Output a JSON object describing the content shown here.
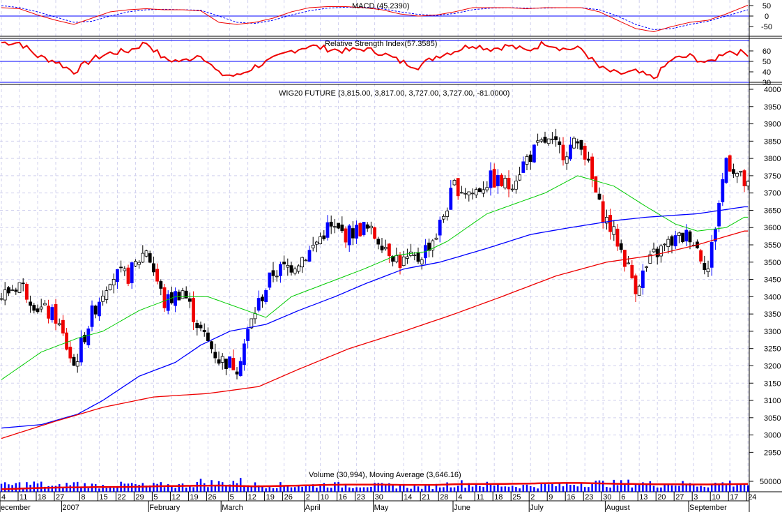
{
  "chart_data": {
    "type": "candlestick",
    "title": "WIG20 FUTURE (3,815.00, 3,817.00, 3,727.00, 3,727.00, -81.0000)",
    "panels": {
      "macd": {
        "title": "MACD (45.2390)",
        "ticks": [
          "50",
          "0",
          "-50"
        ],
        "tick_values": [
          50,
          0,
          -50
        ],
        "macd": [
          40,
          35,
          5,
          -20,
          -40,
          -10,
          20,
          30,
          35,
          30,
          30,
          25,
          -30,
          -40,
          -30,
          -10,
          20,
          40,
          45,
          45,
          40,
          30,
          10,
          0,
          5,
          20,
          40,
          40,
          40,
          35,
          40,
          40,
          40,
          20,
          -20,
          -60,
          -75,
          -50,
          -30,
          -20,
          10,
          45
        ],
        "signal": [
          50,
          40,
          20,
          -5,
          -30,
          -25,
          0,
          20,
          30,
          32,
          30,
          28,
          0,
          -30,
          -35,
          -20,
          5,
          25,
          38,
          42,
          42,
          35,
          20,
          8,
          3,
          12,
          30,
          38,
          40,
          38,
          38,
          40,
          40,
          30,
          0,
          -40,
          -65,
          -60,
          -40,
          -25,
          0,
          25
        ]
      },
      "rsi": {
        "title": "Relative Strength Index(57.3585)",
        "ticks": [
          "60",
          "50",
          "40",
          "30"
        ],
        "tick_values": [
          60,
          50,
          40,
          30
        ],
        "levels": [
          70,
          50,
          30
        ],
        "values": [
          68,
          68,
          55,
          50,
          40,
          52,
          58,
          60,
          68,
          52,
          50,
          57,
          38,
          36,
          45,
          52,
          60,
          65,
          62,
          60,
          62,
          58,
          50,
          45,
          55,
          60,
          66,
          62,
          65,
          60,
          68,
          62,
          62,
          44,
          38,
          40,
          34,
          52,
          55,
          48,
          60,
          58
        ]
      },
      "price": {
        "ticks": [
          "4000",
          "3950",
          "3900",
          "3850",
          "3800",
          "3750",
          "3700",
          "3650",
          "3600",
          "3550",
          "3500",
          "3450",
          "3400",
          "3350",
          "3300",
          "3250",
          "3200",
          "3150",
          "3100",
          "3050",
          "3000",
          "2950"
        ],
        "ylim": [
          2950,
          4000
        ],
        "weekly_close": [
          3400,
          3440,
          3370,
          3340,
          3200,
          3350,
          3460,
          3460,
          3540,
          3380,
          3420,
          3300,
          3220,
          3200,
          3360,
          3470,
          3490,
          3530,
          3600,
          3580,
          3600,
          3560,
          3500,
          3510,
          3580,
          3720,
          3700,
          3740,
          3720,
          3800,
          3850,
          3820,
          3850,
          3660,
          3560,
          3430,
          3520,
          3560,
          3580,
          3480,
          3800,
          3727
        ],
        "ma_short": [
          [
            0,
            3160
          ],
          [
            11,
            3240
          ],
          [
            21,
            3280
          ],
          [
            28,
            3300
          ],
          [
            38,
            3360
          ],
          [
            48,
            3400
          ],
          [
            57,
            3400
          ],
          [
            73,
            3340
          ],
          [
            80,
            3400
          ],
          [
            90,
            3440
          ],
          [
            100,
            3480
          ],
          [
            109,
            3520
          ],
          [
            117,
            3530
          ],
          [
            123,
            3560
          ],
          [
            134,
            3640
          ],
          [
            150,
            3700
          ],
          [
            159,
            3750
          ],
          [
            169,
            3720
          ],
          [
            178,
            3660
          ],
          [
            186,
            3610
          ],
          [
            192,
            3590
          ],
          [
            200,
            3600
          ],
          [
            205,
            3630
          ]
        ],
        "ma_mid": [
          [
            0,
            3020
          ],
          [
            11,
            3030
          ],
          [
            21,
            3060
          ],
          [
            28,
            3100
          ],
          [
            38,
            3170
          ],
          [
            48,
            3210
          ],
          [
            55,
            3260
          ],
          [
            63,
            3300
          ],
          [
            73,
            3320
          ],
          [
            82,
            3360
          ],
          [
            92,
            3400
          ],
          [
            101,
            3440
          ],
          [
            111,
            3480
          ],
          [
            121,
            3500
          ],
          [
            134,
            3540
          ],
          [
            146,
            3580
          ],
          [
            157,
            3600
          ],
          [
            169,
            3620
          ],
          [
            178,
            3630
          ],
          [
            192,
            3640
          ],
          [
            205,
            3660
          ]
        ],
        "ma_long": [
          [
            0,
            2990
          ],
          [
            15,
            3040
          ],
          [
            28,
            3080
          ],
          [
            42,
            3110
          ],
          [
            57,
            3120
          ],
          [
            71,
            3140
          ],
          [
            82,
            3190
          ],
          [
            96,
            3250
          ],
          [
            111,
            3300
          ],
          [
            125,
            3350
          ],
          [
            138,
            3400
          ],
          [
            153,
            3460
          ],
          [
            167,
            3500
          ],
          [
            180,
            3520
          ],
          [
            192,
            3550
          ],
          [
            205,
            3590
          ]
        ]
      },
      "volume": {
        "title": "Volume (30,994), Moving Average (3,646.16)",
        "ticks": [
          "50000"
        ],
        "weekly_avg": [
          30,
          35,
          38,
          22,
          40,
          30,
          28,
          35,
          28,
          32,
          30,
          45,
          40,
          50,
          33,
          32,
          30,
          30,
          35,
          30,
          32,
          28,
          30,
          22,
          28,
          40,
          38,
          32,
          30,
          28,
          32,
          30,
          45,
          40,
          38,
          42,
          35,
          40,
          34,
          34,
          42,
          36
        ],
        "moving_average": [
          12,
          15,
          18,
          20,
          21,
          22,
          23,
          23,
          25,
          27,
          28,
          29,
          30,
          28,
          26,
          27,
          29,
          31,
          33,
          34,
          34,
          34,
          33,
          33,
          33,
          36,
          37,
          37,
          38,
          39,
          41,
          42,
          42,
          40,
          38,
          37,
          36,
          36,
          35,
          35,
          36,
          37
        ]
      }
    },
    "x_day_labels": [
      "4",
      "11",
      "18",
      "27",
      "8",
      "15",
      "22",
      "29",
      "5",
      "12",
      "19",
      "26",
      "5",
      "12",
      "19",
      "26",
      "2",
      "10",
      "16",
      "23",
      "30",
      "14",
      "21",
      "28",
      "4",
      "11",
      "18",
      "25",
      "2",
      "9",
      "16",
      "23",
      "30",
      "6",
      "13",
      "20",
      "27",
      "3",
      "10",
      "17",
      "24"
    ],
    "x_day_label_index": [
      0,
      5,
      10,
      15,
      22,
      27,
      32,
      37,
      42,
      47,
      52,
      57,
      63,
      68,
      73,
      78,
      84,
      88,
      93,
      98,
      103,
      111,
      116,
      121,
      126,
      131,
      136,
      141,
      146,
      151,
      156,
      161,
      166,
      171,
      176,
      181,
      186,
      191,
      196,
      201,
      206
    ],
    "x_month_labels": [
      "ecember",
      "2007",
      "February",
      "March",
      "April",
      "May",
      "June",
      "July",
      "August",
      "September"
    ],
    "x_month_label_index": [
      0,
      17,
      41,
      61,
      84,
      103,
      125,
      146,
      167,
      190
    ]
  }
}
